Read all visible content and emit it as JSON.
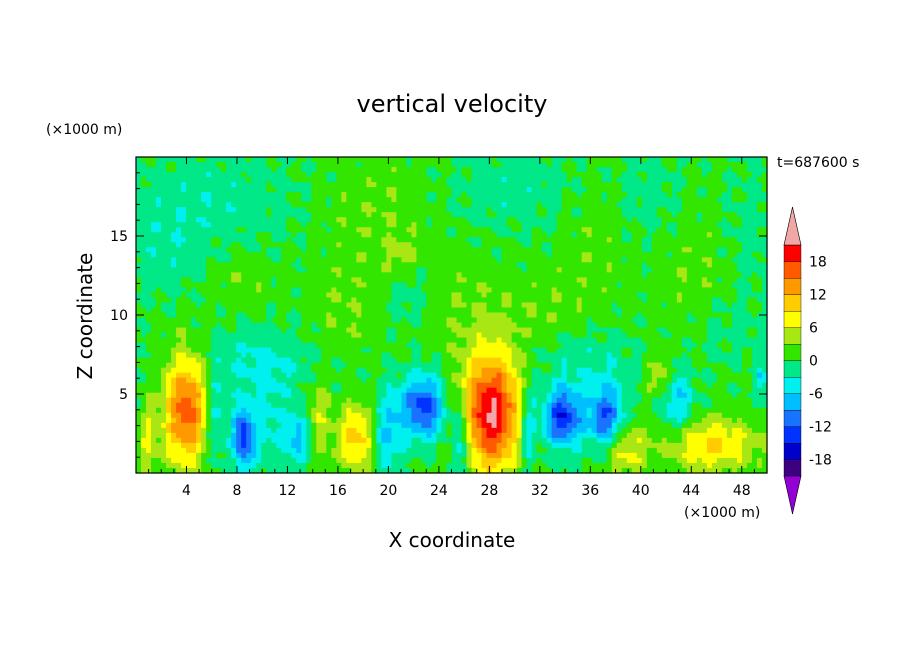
{
  "chart_data": {
    "type": "heatmap",
    "title": "vertical velocity",
    "xlabel": "X coordinate",
    "ylabel": "Z coordinate",
    "x_unit": "(×1000 m)",
    "y_unit": "(×1000 m)",
    "time_label": "t=687600 s",
    "xlim": [
      0,
      50
    ],
    "ylim": [
      0,
      20
    ],
    "x_ticks": [
      4,
      8,
      12,
      16,
      20,
      24,
      28,
      32,
      36,
      40,
      44,
      48
    ],
    "x_tick_labels": [
      "4",
      "8",
      "12",
      "16",
      "20",
      "24",
      "28",
      "32",
      "36",
      "40",
      "44",
      "48"
    ],
    "y_ticks": [
      5,
      10,
      15
    ],
    "y_tick_labels": [
      "5",
      "10",
      "15"
    ],
    "colorbar": {
      "levels": [
        -21,
        -18,
        -15,
        -12,
        -9,
        -6,
        -3,
        0,
        3,
        6,
        9,
        12,
        15,
        18,
        21
      ],
      "tick_values": [
        18,
        12,
        6,
        0,
        -6,
        -12,
        -18
      ],
      "tick_labels": [
        "18",
        "12",
        "6",
        "0",
        "-6",
        "-12",
        "-18"
      ],
      "colors": [
        "#9400d3",
        "#3d0080",
        "#0000cd",
        "#0033ff",
        "#1a73ff",
        "#00bfff",
        "#00f0f0",
        "#00e887",
        "#33e600",
        "#a8e614",
        "#ffff00",
        "#ffcc00",
        "#ff9900",
        "#ff5a00",
        "#ff0000",
        "#f2a7a7"
      ],
      "over_color": "#f2a7a7",
      "under_color": "#9400d3"
    },
    "background_value": 0.4,
    "features": [
      {
        "x": 4.0,
        "z": 4.0,
        "sx": 1.2,
        "sz": 2.4,
        "w": 17
      },
      {
        "x": 28.2,
        "z": 3.8,
        "sx": 1.7,
        "sz": 2.6,
        "w": 21
      },
      {
        "x": 17.4,
        "z": 2.2,
        "sx": 1.0,
        "sz": 1.5,
        "w": 10
      },
      {
        "x": 45.5,
        "z": 1.8,
        "sx": 2.6,
        "sz": 1.2,
        "w": 9
      },
      {
        "x": 1.0,
        "z": 2.0,
        "sx": 0.5,
        "sz": 1.5,
        "w": 6
      },
      {
        "x": 14.5,
        "z": 3.5,
        "sx": 0.7,
        "sz": 2.0,
        "w": 5
      },
      {
        "x": 38.5,
        "z": 1.5,
        "sx": 1.3,
        "sz": 1.2,
        "w": 8
      },
      {
        "x": 41.5,
        "z": 6.0,
        "sx": 0.7,
        "sz": 1.0,
        "w": 6
      },
      {
        "x": 8.5,
        "z": 2.3,
        "sx": 0.6,
        "sz": 1.4,
        "w": -14
      },
      {
        "x": 22.8,
        "z": 4.2,
        "sx": 1.2,
        "sz": 1.4,
        "w": -14
      },
      {
        "x": 33.8,
        "z": 3.5,
        "sx": 1.1,
        "sz": 1.3,
        "w": -15
      },
      {
        "x": 37.3,
        "z": 3.3,
        "sx": 1.0,
        "sz": 1.5,
        "w": -13
      },
      {
        "x": 12.8,
        "z": 2.2,
        "sx": 0.7,
        "sz": 1.3,
        "w": -8
      },
      {
        "x": 20.0,
        "z": 2.5,
        "sx": 0.8,
        "sz": 1.8,
        "w": -7
      },
      {
        "x": 25.8,
        "z": 2.0,
        "sx": 0.5,
        "sz": 2.0,
        "w": -8
      },
      {
        "x": 31.0,
        "z": 3.0,
        "sx": 0.5,
        "sz": 2.0,
        "w": -8
      },
      {
        "x": 42.8,
        "z": 4.5,
        "sx": 1.0,
        "sz": 1.5,
        "w": -7
      },
      {
        "x": 6.2,
        "z": 3.5,
        "sx": 0.6,
        "sz": 2.0,
        "w": -6
      },
      {
        "x": 49.5,
        "z": 6.0,
        "sx": 0.4,
        "sz": 0.8,
        "w": -5
      },
      {
        "x": 10.5,
        "z": 3.0,
        "sx": 1.0,
        "sz": 2.0,
        "w": -4
      },
      {
        "x": 35.5,
        "z": 7.0,
        "sx": 3.0,
        "sz": 1.5,
        "w": -3
      },
      {
        "x": 10.0,
        "z": 7.0,
        "sx": 3.0,
        "sz": 1.5,
        "w": -4
      },
      {
        "x": 6.0,
        "z": 17.0,
        "sx": 5.0,
        "sz": 2.5,
        "w": -2.5
      },
      {
        "x": 19.0,
        "z": 16.5,
        "sx": 3.5,
        "sz": 3.0,
        "w": 2.2
      },
      {
        "x": 30.0,
        "z": 18.0,
        "sx": 4.0,
        "sz": 2.0,
        "w": -2.2
      },
      {
        "x": 36.5,
        "z": 15.5,
        "sx": 2.0,
        "sz": 3.0,
        "w": 2.0
      },
      {
        "x": 44.5,
        "z": 12.5,
        "sx": 2.5,
        "sz": 3.5,
        "w": 2.0
      },
      {
        "x": 8.5,
        "z": 12.5,
        "sx": 2.0,
        "sz": 1.5,
        "w": 2.0
      },
      {
        "x": 2.0,
        "z": 14.0,
        "sx": 2.0,
        "sz": 2.0,
        "w": -2.0
      },
      {
        "x": 16.5,
        "z": 10.0,
        "sx": 2.0,
        "sz": 2.0,
        "w": 2.2
      },
      {
        "x": 26.0,
        "z": 10.5,
        "sx": 3.0,
        "sz": 2.5,
        "w": 2.0
      },
      {
        "x": 33.0,
        "z": 10.0,
        "sx": 2.5,
        "sz": 2.0,
        "w": 2.0
      },
      {
        "x": 21.5,
        "z": 11.5,
        "sx": 1.2,
        "sz": 1.5,
        "w": -3.0
      },
      {
        "x": 21.0,
        "z": 13.5,
        "sx": 0.8,
        "sz": 1.0,
        "w": 3.5
      },
      {
        "x": 48.5,
        "z": 15.0,
        "sx": 1.5,
        "sz": 3.0,
        "w": -2.0
      },
      {
        "x": 46.5,
        "z": 9.0,
        "sx": 2.0,
        "sz": 1.5,
        "w": -2.0
      },
      {
        "x": 40.5,
        "z": 17.5,
        "sx": 2.0,
        "sz": 2.0,
        "w": -2.2
      }
    ]
  }
}
